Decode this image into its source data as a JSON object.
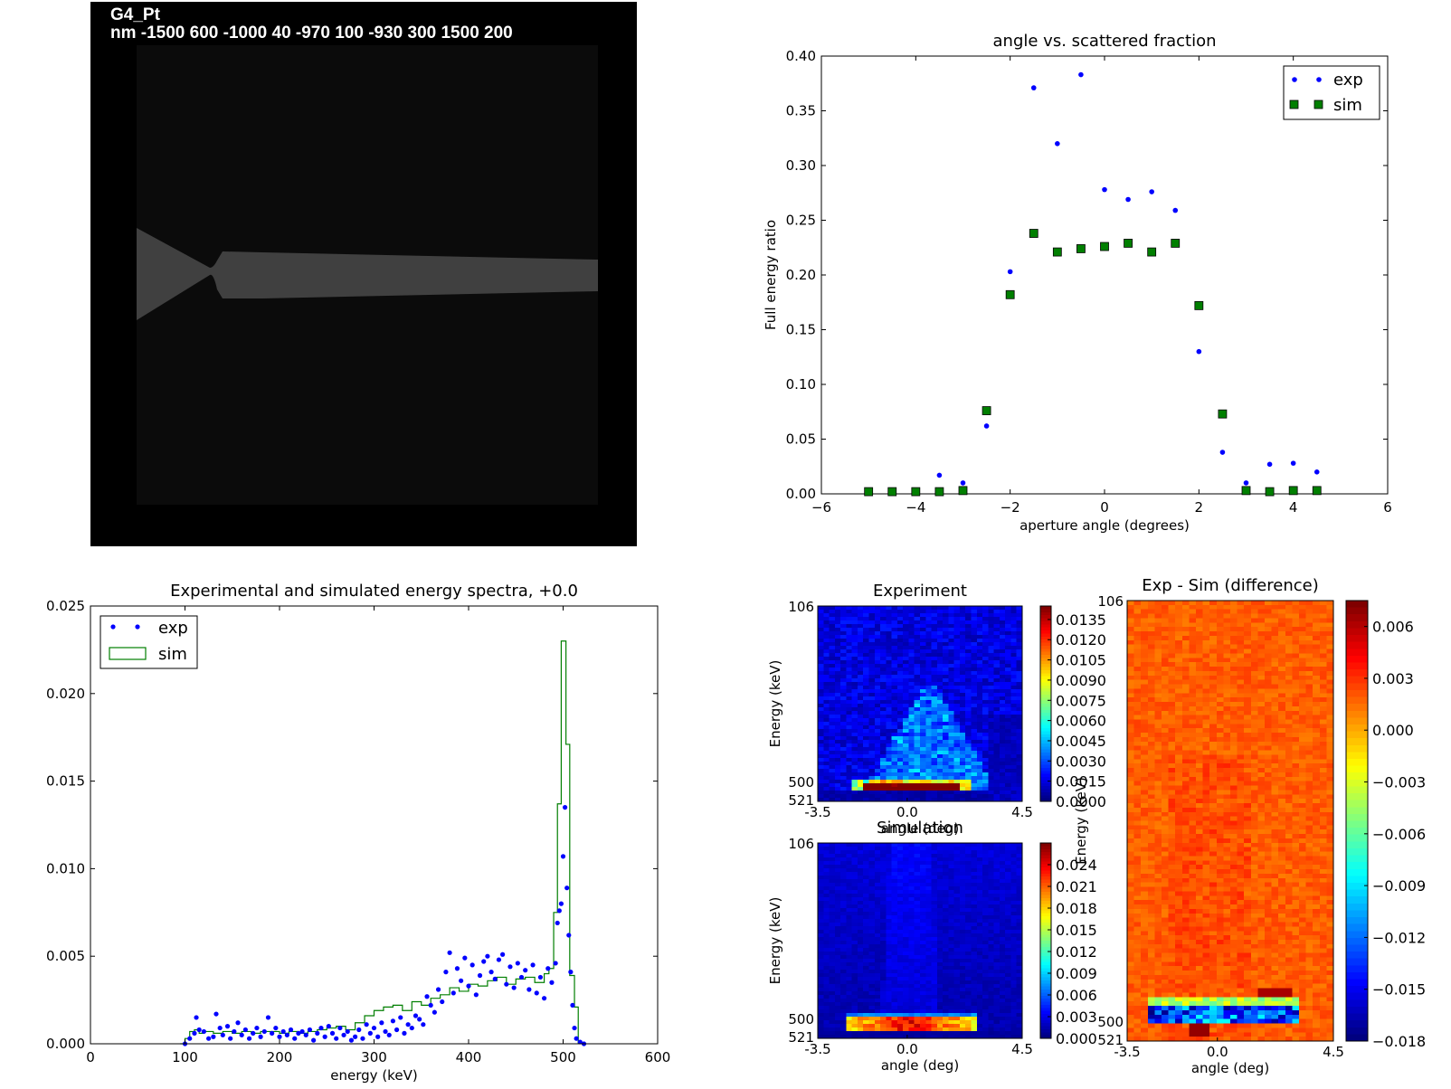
{
  "geometry_panel": {
    "title_line1": "G4_Pt",
    "title_line2": "nm -1500 600 -1000 40 -970 100 -930 300 1500 200",
    "background_color": "#000000",
    "domain_color": "#0b0b0b",
    "shape_color": "#404040"
  },
  "chart_data": [
    {
      "id": "angle_scatter",
      "type": "scatter",
      "title": "angle vs. scattered fraction",
      "xlabel": "aperture angle (degrees)",
      "ylabel": "Full energy ratio",
      "xlim": [
        -6,
        6
      ],
      "ylim": [
        0,
        0.4
      ],
      "xticks": [
        "−6",
        "−4",
        "−2",
        "0",
        "2",
        "4",
        "6"
      ],
      "yticks": [
        "0.00",
        "0.05",
        "0.10",
        "0.15",
        "0.20",
        "0.25",
        "0.30",
        "0.35",
        "0.40"
      ],
      "legend_position": "top-right",
      "series": [
        {
          "name": "exp",
          "marker": "dot",
          "color": "#0000ff",
          "points": [
            [
              -3.5,
              0.017
            ],
            [
              -3.0,
              0.01
            ],
            [
              -2.5,
              0.062
            ],
            [
              -2.0,
              0.203
            ],
            [
              -1.5,
              0.371
            ],
            [
              -1.0,
              0.32
            ],
            [
              -0.5,
              0.383
            ],
            [
              0.0,
              0.278
            ],
            [
              0.5,
              0.269
            ],
            [
              1.0,
              0.276
            ],
            [
              1.5,
              0.259
            ],
            [
              2.0,
              0.13
            ],
            [
              2.5,
              0.038
            ],
            [
              3.0,
              0.01
            ],
            [
              3.5,
              0.027
            ],
            [
              4.0,
              0.028
            ],
            [
              4.5,
              0.02
            ]
          ]
        },
        {
          "name": "sim",
          "marker": "square",
          "color": "#007f00",
          "points": [
            [
              -5.0,
              0.002
            ],
            [
              -4.5,
              0.002
            ],
            [
              -4.0,
              0.002
            ],
            [
              -3.5,
              0.002
            ],
            [
              -3.0,
              0.003
            ],
            [
              -2.5,
              0.076
            ],
            [
              -2.0,
              0.182
            ],
            [
              -1.5,
              0.238
            ],
            [
              -1.0,
              0.221
            ],
            [
              -0.5,
              0.224
            ],
            [
              0.0,
              0.226
            ],
            [
              0.5,
              0.229
            ],
            [
              1.0,
              0.221
            ],
            [
              1.5,
              0.229
            ],
            [
              2.0,
              0.172
            ],
            [
              2.5,
              0.073
            ],
            [
              3.0,
              0.003
            ],
            [
              3.5,
              0.002
            ],
            [
              4.0,
              0.003
            ],
            [
              4.5,
              0.003
            ]
          ]
        }
      ]
    },
    {
      "id": "energy_spectra",
      "type": "line",
      "title": "Experimental and simulated energy spectra, +0.0",
      "xlabel": "energy (keV)",
      "ylabel": "",
      "xlim": [
        0,
        600
      ],
      "ylim": [
        0,
        0.025
      ],
      "xticks": [
        "0",
        "100",
        "200",
        "300",
        "400",
        "500",
        "600"
      ],
      "yticks": [
        "0.000",
        "0.005",
        "0.010",
        "0.015",
        "0.020",
        "0.025"
      ],
      "legend_position": "top-left",
      "series": [
        {
          "name": "exp",
          "marker": "dot",
          "color": "#0000ff",
          "points": [
            [
              100,
              0.0
            ],
            [
              105,
              0.0003
            ],
            [
              110,
              0.0006
            ],
            [
              112,
              0.0015
            ],
            [
              115,
              0.0008
            ],
            [
              120,
              0.0007
            ],
            [
              125,
              0.0003
            ],
            [
              130,
              0.0004
            ],
            [
              133,
              0.0017
            ],
            [
              137,
              0.0009
            ],
            [
              140,
              0.0005
            ],
            [
              145,
              0.001
            ],
            [
              148,
              0.0003
            ],
            [
              152,
              0.0007
            ],
            [
              156,
              0.0012
            ],
            [
              160,
              0.0005
            ],
            [
              164,
              0.0008
            ],
            [
              168,
              0.0003
            ],
            [
              172,
              0.0006
            ],
            [
              176,
              0.0009
            ],
            [
              180,
              0.0004
            ],
            [
              184,
              0.0007
            ],
            [
              188,
              0.0015
            ],
            [
              192,
              0.0006
            ],
            [
              196,
              0.0009
            ],
            [
              200,
              0.0004
            ],
            [
              204,
              0.0007
            ],
            [
              208,
              0.0005
            ],
            [
              212,
              0.0008
            ],
            [
              216,
              0.0003
            ],
            [
              220,
              0.0006
            ],
            [
              224,
              0.0007
            ],
            [
              228,
              0.0005
            ],
            [
              232,
              0.0008
            ],
            [
              236,
              0.0002
            ],
            [
              240,
              0.0006
            ],
            [
              244,
              0.0009
            ],
            [
              248,
              0.0004
            ],
            [
              252,
              0.001
            ],
            [
              256,
              0.0006
            ],
            [
              260,
              0.0003
            ],
            [
              264,
              0.0009
            ],
            [
              268,
              0.0005
            ],
            [
              272,
              0.0007
            ],
            [
              276,
              0.0002
            ],
            [
              280,
              0.0004
            ],
            [
              284,
              0.0008
            ],
            [
              288,
              0.0003
            ],
            [
              292,
              0.0011
            ],
            [
              296,
              0.0006
            ],
            [
              300,
              0.0009
            ],
            [
              304,
              0.0004
            ],
            [
              308,
              0.0012
            ],
            [
              312,
              0.0007
            ],
            [
              316,
              0.0005
            ],
            [
              320,
              0.0013
            ],
            [
              324,
              0.0008
            ],
            [
              328,
              0.0015
            ],
            [
              332,
              0.0006
            ],
            [
              336,
              0.0011
            ],
            [
              340,
              0.0009
            ],
            [
              344,
              0.0016
            ],
            [
              348,
              0.0014
            ],
            [
              352,
              0.0011
            ],
            [
              356,
              0.0027
            ],
            [
              360,
              0.0022
            ],
            [
              364,
              0.0018
            ],
            [
              368,
              0.0031
            ],
            [
              372,
              0.0024
            ],
            [
              376,
              0.0041
            ],
            [
              380,
              0.0052
            ],
            [
              384,
              0.0029
            ],
            [
              388,
              0.0043
            ],
            [
              392,
              0.0036
            ],
            [
              396,
              0.0049
            ],
            [
              400,
              0.0033
            ],
            [
              404,
              0.0045
            ],
            [
              408,
              0.0028
            ],
            [
              412,
              0.0039
            ],
            [
              416,
              0.0047
            ],
            [
              420,
              0.005
            ],
            [
              424,
              0.0041
            ],
            [
              428,
              0.0037
            ],
            [
              432,
              0.0048
            ],
            [
              436,
              0.0051
            ],
            [
              440,
              0.0034
            ],
            [
              444,
              0.0044
            ],
            [
              448,
              0.0032
            ],
            [
              452,
              0.0046
            ],
            [
              456,
              0.0038
            ],
            [
              460,
              0.0042
            ],
            [
              464,
              0.0031
            ],
            [
              468,
              0.0045
            ],
            [
              472,
              0.0029
            ],
            [
              476,
              0.0038
            ],
            [
              480,
              0.0026
            ],
            [
              484,
              0.0043
            ],
            [
              488,
              0.0035
            ],
            [
              492,
              0.0046
            ],
            [
              494,
              0.0069
            ],
            [
              496,
              0.0076
            ],
            [
              498,
              0.008
            ],
            [
              500,
              0.0107
            ],
            [
              502,
              0.0135
            ],
            [
              504,
              0.0089
            ],
            [
              506,
              0.0062
            ],
            [
              508,
              0.0041
            ],
            [
              510,
              0.0022
            ],
            [
              512,
              0.0009
            ],
            [
              514,
              0.0003
            ],
            [
              518,
              0.0001
            ],
            [
              522,
              0.0
            ]
          ]
        },
        {
          "name": "sim",
          "marker": "step",
          "color": "#007f00",
          "points": [
            [
              95,
              0.0
            ],
            [
              100,
              0.0003
            ],
            [
              105,
              0.0007
            ],
            [
              110,
              0.0008
            ],
            [
              115,
              0.0006
            ],
            [
              120,
              0.0007
            ],
            [
              130,
              0.0006
            ],
            [
              140,
              0.0007
            ],
            [
              150,
              0.0006
            ],
            [
              160,
              0.0007
            ],
            [
              170,
              0.0006
            ],
            [
              180,
              0.0007
            ],
            [
              190,
              0.0007
            ],
            [
              200,
              0.0006
            ],
            [
              210,
              0.0007
            ],
            [
              220,
              0.0006
            ],
            [
              230,
              0.0007
            ],
            [
              240,
              0.0008
            ],
            [
              250,
              0.0009
            ],
            [
              260,
              0.001
            ],
            [
              270,
              0.0008
            ],
            [
              280,
              0.0012
            ],
            [
              290,
              0.0016
            ],
            [
              300,
              0.0019
            ],
            [
              310,
              0.0021
            ],
            [
              320,
              0.0022
            ],
            [
              330,
              0.0019
            ],
            [
              340,
              0.0024
            ],
            [
              350,
              0.0022
            ],
            [
              360,
              0.0026
            ],
            [
              370,
              0.0028
            ],
            [
              380,
              0.0032
            ],
            [
              390,
              0.003
            ],
            [
              400,
              0.0034
            ],
            [
              410,
              0.0033
            ],
            [
              420,
              0.0036
            ],
            [
              430,
              0.0038
            ],
            [
              440,
              0.0034
            ],
            [
              450,
              0.0037
            ],
            [
              460,
              0.0038
            ],
            [
              470,
              0.0035
            ],
            [
              480,
              0.004
            ],
            [
              485,
              0.0043
            ],
            [
              490,
              0.0075
            ],
            [
              494,
              0.0137
            ],
            [
              498,
              0.023
            ],
            [
              503,
              0.0171
            ],
            [
              507,
              0.0039
            ],
            [
              512,
              0.0021
            ],
            [
              516,
              0.0
            ]
          ]
        }
      ]
    },
    {
      "id": "heatmap_experiment",
      "type": "heatmap",
      "title": "Experiment",
      "xlabel": "angle (deg)",
      "ylabel": "Energy (keV)",
      "xticks": [
        "-3.5",
        "0.0",
        "4.5"
      ],
      "yticks": [
        "106",
        "500",
        "521"
      ],
      "colorbar_ticks": [
        "0.0000",
        "0.0015",
        "0.0030",
        "0.0045",
        "0.0060",
        "0.0075",
        "0.0090",
        "0.0105",
        "0.0120",
        "0.0135"
      ],
      "vmin": 0.0,
      "vmax": 0.0145,
      "colormap": "jet"
    },
    {
      "id": "heatmap_simulation",
      "type": "heatmap",
      "title": "Simulation",
      "xlabel": "angle (deg)",
      "ylabel": "Energy (keV)",
      "xticks": [
        "-3.5",
        "0.0",
        "4.5"
      ],
      "yticks": [
        "106",
        "500",
        "521"
      ],
      "colorbar_ticks": [
        "0.000",
        "0.003",
        "0.006",
        "0.009",
        "0.012",
        "0.015",
        "0.018",
        "0.021",
        "0.024"
      ],
      "vmin": 0.0,
      "vmax": 0.027,
      "colormap": "jet"
    },
    {
      "id": "heatmap_difference",
      "type": "heatmap",
      "title": "Exp - Sim (difference)",
      "xlabel": "angle (deg)",
      "ylabel": "Energy (keV)",
      "xticks": [
        "-3.5",
        "0.0",
        "4.5"
      ],
      "yticks": [
        "106",
        "500",
        "521"
      ],
      "colorbar_ticks": [
        "−0.018",
        "−0.015",
        "−0.012",
        "−0.009",
        "−0.006",
        "−0.003",
        "0.000",
        "0.003",
        "0.006"
      ],
      "vmin": -0.018,
      "vmax": 0.0075,
      "colormap": "jet"
    }
  ]
}
